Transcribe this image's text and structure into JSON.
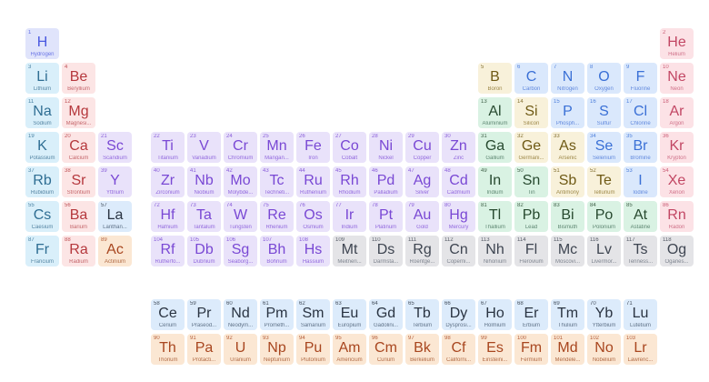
{
  "table": {
    "name": "periodic-table"
  },
  "categories": {
    "hydrogen": {
      "bg": "#e0e4fb",
      "main": "#4a59e0",
      "dim": "#6a74e6"
    },
    "alkali": {
      "bg": "#d9effa",
      "main": "#2f6e93",
      "dim": "#5585a3"
    },
    "alkaline": {
      "bg": "#fce5e5",
      "main": "#b5383d",
      "dim": "#c4656a"
    },
    "transition": {
      "bg": "#e9e2fa",
      "main": "#7948d4",
      "dim": "#9168dd"
    },
    "post_transition": {
      "bg": "#d9f2e3",
      "main": "#27492f",
      "dim": "#5d8671"
    },
    "metalloid": {
      "bg": "#f8f1da",
      "main": "#6f5a15",
      "dim": "#9c8747"
    },
    "nonmetal": {
      "bg": "#dae8fc",
      "main": "#3a70d6",
      "dim": "#6189dd"
    },
    "noble": {
      "bg": "#fce2e6",
      "main": "#c24764",
      "dim": "#cf7088"
    },
    "lanthanide": {
      "bg": "#dcebfb",
      "main": "#2a3442",
      "dim": "#5f7288"
    },
    "actinide": {
      "bg": "#fbe7d3",
      "main": "#a8461f",
      "dim": "#b06a44"
    },
    "unknown": {
      "bg": "#e4e4e7",
      "main": "#3e4551",
      "dim": "#7d838e"
    }
  },
  "elements": [
    {
      "n": 1,
      "sym": "H",
      "name": "Hydrogen",
      "cat": "hydrogen",
      "row": 1,
      "col": 1
    },
    {
      "n": 2,
      "sym": "He",
      "name": "Helium",
      "cat": "noble",
      "row": 1,
      "col": 18
    },
    {
      "n": 3,
      "sym": "Li",
      "name": "Lithium",
      "cat": "alkali",
      "row": 2,
      "col": 1
    },
    {
      "n": 4,
      "sym": "Be",
      "name": "Beryllium",
      "cat": "alkaline",
      "row": 2,
      "col": 2
    },
    {
      "n": 5,
      "sym": "B",
      "name": "Boron",
      "cat": "metalloid",
      "row": 2,
      "col": 13
    },
    {
      "n": 6,
      "sym": "C",
      "name": "Carbon",
      "cat": "nonmetal",
      "row": 2,
      "col": 14
    },
    {
      "n": 7,
      "sym": "N",
      "name": "Nitrogen",
      "cat": "nonmetal",
      "row": 2,
      "col": 15
    },
    {
      "n": 8,
      "sym": "O",
      "name": "Oxygen",
      "cat": "nonmetal",
      "row": 2,
      "col": 16
    },
    {
      "n": 9,
      "sym": "F",
      "name": "Fluorine",
      "cat": "nonmetal",
      "row": 2,
      "col": 17
    },
    {
      "n": 10,
      "sym": "Ne",
      "name": "Neon",
      "cat": "noble",
      "row": 2,
      "col": 18
    },
    {
      "n": 11,
      "sym": "Na",
      "name": "Sodium",
      "cat": "alkali",
      "row": 3,
      "col": 1
    },
    {
      "n": 12,
      "sym": "Mg",
      "name": "Magnesi...",
      "cat": "alkaline",
      "row": 3,
      "col": 2
    },
    {
      "n": 13,
      "sym": "Al",
      "name": "Aluminium",
      "cat": "post_transition",
      "row": 3,
      "col": 13
    },
    {
      "n": 14,
      "sym": "Si",
      "name": "Silicon",
      "cat": "metalloid",
      "row": 3,
      "col": 14
    },
    {
      "n": 15,
      "sym": "P",
      "name": "Phosph...",
      "cat": "nonmetal",
      "row": 3,
      "col": 15
    },
    {
      "n": 16,
      "sym": "S",
      "name": "Sulfur",
      "cat": "nonmetal",
      "row": 3,
      "col": 16
    },
    {
      "n": 17,
      "sym": "Cl",
      "name": "Chlorine",
      "cat": "nonmetal",
      "row": 3,
      "col": 17
    },
    {
      "n": 18,
      "sym": "Ar",
      "name": "Argon",
      "cat": "noble",
      "row": 3,
      "col": 18
    },
    {
      "n": 19,
      "sym": "K",
      "name": "Potassium",
      "cat": "alkali",
      "row": 4,
      "col": 1
    },
    {
      "n": 20,
      "sym": "Ca",
      "name": "Calcium",
      "cat": "alkaline",
      "row": 4,
      "col": 2
    },
    {
      "n": 21,
      "sym": "Sc",
      "name": "Scandium",
      "cat": "transition",
      "row": 4,
      "col": 3
    },
    {
      "n": 22,
      "sym": "Ti",
      "name": "Titanium",
      "cat": "transition",
      "row": 4,
      "col": 4
    },
    {
      "n": 23,
      "sym": "V",
      "name": "Vanadium",
      "cat": "transition",
      "row": 4,
      "col": 5
    },
    {
      "n": 24,
      "sym": "Cr",
      "name": "Chromium",
      "cat": "transition",
      "row": 4,
      "col": 6
    },
    {
      "n": 25,
      "sym": "Mn",
      "name": "Mangan...",
      "cat": "transition",
      "row": 4,
      "col": 7
    },
    {
      "n": 26,
      "sym": "Fe",
      "name": "Iron",
      "cat": "transition",
      "row": 4,
      "col": 8
    },
    {
      "n": 27,
      "sym": "Co",
      "name": "Cobalt",
      "cat": "transition",
      "row": 4,
      "col": 9
    },
    {
      "n": 28,
      "sym": "Ni",
      "name": "Nickel",
      "cat": "transition",
      "row": 4,
      "col": 10
    },
    {
      "n": 29,
      "sym": "Cu",
      "name": "Copper",
      "cat": "transition",
      "row": 4,
      "col": 11
    },
    {
      "n": 30,
      "sym": "Zn",
      "name": "Zinc",
      "cat": "transition",
      "row": 4,
      "col": 12
    },
    {
      "n": 31,
      "sym": "Ga",
      "name": "Gallium",
      "cat": "post_transition",
      "row": 4,
      "col": 13
    },
    {
      "n": 32,
      "sym": "Ge",
      "name": "Germani...",
      "cat": "metalloid",
      "row": 4,
      "col": 14
    },
    {
      "n": 33,
      "sym": "As",
      "name": "Arsenic",
      "cat": "metalloid",
      "row": 4,
      "col": 15
    },
    {
      "n": 34,
      "sym": "Se",
      "name": "Selenium",
      "cat": "nonmetal",
      "row": 4,
      "col": 16
    },
    {
      "n": 35,
      "sym": "Br",
      "name": "Bromine",
      "cat": "nonmetal",
      "row": 4,
      "col": 17
    },
    {
      "n": 36,
      "sym": "Kr",
      "name": "Krypton",
      "cat": "noble",
      "row": 4,
      "col": 18
    },
    {
      "n": 37,
      "sym": "Rb",
      "name": "Rubidium",
      "cat": "alkali",
      "row": 5,
      "col": 1
    },
    {
      "n": 38,
      "sym": "Sr",
      "name": "Strontium",
      "cat": "alkaline",
      "row": 5,
      "col": 2
    },
    {
      "n": 39,
      "sym": "Y",
      "name": "Yttrium",
      "cat": "transition",
      "row": 5,
      "col": 3
    },
    {
      "n": 40,
      "sym": "Zr",
      "name": "Zirconium",
      "cat": "transition",
      "row": 5,
      "col": 4
    },
    {
      "n": 41,
      "sym": "Nb",
      "name": "Niobium",
      "cat": "transition",
      "row": 5,
      "col": 5
    },
    {
      "n": 42,
      "sym": "Mo",
      "name": "Molybde...",
      "cat": "transition",
      "row": 5,
      "col": 6
    },
    {
      "n": 43,
      "sym": "Tc",
      "name": "Techneti...",
      "cat": "transition",
      "row": 5,
      "col": 7
    },
    {
      "n": 44,
      "sym": "Ru",
      "name": "Ruthenium",
      "cat": "transition",
      "row": 5,
      "col": 8
    },
    {
      "n": 45,
      "sym": "Rh",
      "name": "Rhodium",
      "cat": "transition",
      "row": 5,
      "col": 9
    },
    {
      "n": 46,
      "sym": "Pd",
      "name": "Palladium",
      "cat": "transition",
      "row": 5,
      "col": 10
    },
    {
      "n": 47,
      "sym": "Ag",
      "name": "Silver",
      "cat": "transition",
      "row": 5,
      "col": 11
    },
    {
      "n": 48,
      "sym": "Cd",
      "name": "Cadmium",
      "cat": "transition",
      "row": 5,
      "col": 12
    },
    {
      "n": 49,
      "sym": "In",
      "name": "Indium",
      "cat": "post_transition",
      "row": 5,
      "col": 13
    },
    {
      "n": 50,
      "sym": "Sn",
      "name": "Tin",
      "cat": "post_transition",
      "row": 5,
      "col": 14
    },
    {
      "n": 51,
      "sym": "Sb",
      "name": "Antimony",
      "cat": "metalloid",
      "row": 5,
      "col": 15
    },
    {
      "n": 52,
      "sym": "Te",
      "name": "Tellurium",
      "cat": "metalloid",
      "row": 5,
      "col": 16
    },
    {
      "n": 53,
      "sym": "I",
      "name": "Iodine",
      "cat": "nonmetal",
      "row": 5,
      "col": 17
    },
    {
      "n": 54,
      "sym": "Xe",
      "name": "Xenon",
      "cat": "noble",
      "row": 5,
      "col": 18
    },
    {
      "n": 55,
      "sym": "Cs",
      "name": "Caesium",
      "cat": "alkali",
      "row": 6,
      "col": 1
    },
    {
      "n": 56,
      "sym": "Ba",
      "name": "Barium",
      "cat": "alkaline",
      "row": 6,
      "col": 2
    },
    {
      "n": 57,
      "sym": "La",
      "name": "Lanthan...",
      "cat": "lanthanide",
      "row": 6,
      "col": 3
    },
    {
      "n": 72,
      "sym": "Hf",
      "name": "Hafnium",
      "cat": "transition",
      "row": 6,
      "col": 4
    },
    {
      "n": 73,
      "sym": "Ta",
      "name": "Tantalum",
      "cat": "transition",
      "row": 6,
      "col": 5
    },
    {
      "n": 74,
      "sym": "W",
      "name": "Tungsten",
      "cat": "transition",
      "row": 6,
      "col": 6
    },
    {
      "n": 75,
      "sym": "Re",
      "name": "Rhenium",
      "cat": "transition",
      "row": 6,
      "col": 7
    },
    {
      "n": 76,
      "sym": "Os",
      "name": "Osmium",
      "cat": "transition",
      "row": 6,
      "col": 8
    },
    {
      "n": 77,
      "sym": "Ir",
      "name": "Iridium",
      "cat": "transition",
      "row": 6,
      "col": 9
    },
    {
      "n": 78,
      "sym": "Pt",
      "name": "Platinum",
      "cat": "transition",
      "row": 6,
      "col": 10
    },
    {
      "n": 79,
      "sym": "Au",
      "name": "Gold",
      "cat": "transition",
      "row": 6,
      "col": 11
    },
    {
      "n": 80,
      "sym": "Hg",
      "name": "Mercury",
      "cat": "transition",
      "row": 6,
      "col": 12
    },
    {
      "n": 81,
      "sym": "Tl",
      "name": "Thallium",
      "cat": "post_transition",
      "row": 6,
      "col": 13
    },
    {
      "n": 82,
      "sym": "Pb",
      "name": "Lead",
      "cat": "post_transition",
      "row": 6,
      "col": 14
    },
    {
      "n": 83,
      "sym": "Bi",
      "name": "Bismuth",
      "cat": "post_transition",
      "row": 6,
      "col": 15
    },
    {
      "n": 84,
      "sym": "Po",
      "name": "Polonium",
      "cat": "post_transition",
      "row": 6,
      "col": 16
    },
    {
      "n": 85,
      "sym": "At",
      "name": "Astatine",
      "cat": "post_transition",
      "row": 6,
      "col": 17
    },
    {
      "n": 86,
      "sym": "Rn",
      "name": "Radon",
      "cat": "noble",
      "row": 6,
      "col": 18
    },
    {
      "n": 87,
      "sym": "Fr",
      "name": "Francium",
      "cat": "alkali",
      "row": 7,
      "col": 1
    },
    {
      "n": 88,
      "sym": "Ra",
      "name": "Radium",
      "cat": "alkaline",
      "row": 7,
      "col": 2
    },
    {
      "n": 89,
      "sym": "Ac",
      "name": "Actinium",
      "cat": "actinide",
      "row": 7,
      "col": 3
    },
    {
      "n": 104,
      "sym": "Rf",
      "name": "Rutherfo...",
      "cat": "transition",
      "row": 7,
      "col": 4
    },
    {
      "n": 105,
      "sym": "Db",
      "name": "Dubnium",
      "cat": "transition",
      "row": 7,
      "col": 5
    },
    {
      "n": 106,
      "sym": "Sg",
      "name": "Seaborg...",
      "cat": "transition",
      "row": 7,
      "col": 6
    },
    {
      "n": 107,
      "sym": "Bh",
      "name": "Bohrium",
      "cat": "transition",
      "row": 7,
      "col": 7
    },
    {
      "n": 108,
      "sym": "Hs",
      "name": "Hassium",
      "cat": "transition",
      "row": 7,
      "col": 8
    },
    {
      "n": 109,
      "sym": "Mt",
      "name": "Meitneri...",
      "cat": "unknown",
      "row": 7,
      "col": 9
    },
    {
      "n": 110,
      "sym": "Ds",
      "name": "Darmsta...",
      "cat": "unknown",
      "row": 7,
      "col": 10
    },
    {
      "n": 111,
      "sym": "Rg",
      "name": "Roentge...",
      "cat": "unknown",
      "row": 7,
      "col": 11
    },
    {
      "n": 112,
      "sym": "Cn",
      "name": "Coperni...",
      "cat": "unknown",
      "row": 7,
      "col": 12
    },
    {
      "n": 113,
      "sym": "Nh",
      "name": "Nihonium",
      "cat": "unknown",
      "row": 7,
      "col": 13
    },
    {
      "n": 114,
      "sym": "Fl",
      "name": "Flerovium",
      "cat": "unknown",
      "row": 7,
      "col": 14
    },
    {
      "n": 115,
      "sym": "Mc",
      "name": "Moscovi...",
      "cat": "unknown",
      "row": 7,
      "col": 15
    },
    {
      "n": 116,
      "sym": "Lv",
      "name": "Livermor...",
      "cat": "unknown",
      "row": 7,
      "col": 16
    },
    {
      "n": 117,
      "sym": "Ts",
      "name": "Tenness...",
      "cat": "unknown",
      "row": 7,
      "col": 17
    },
    {
      "n": 118,
      "sym": "Og",
      "name": "Oganes...",
      "cat": "unknown",
      "row": 7,
      "col": 18
    },
    {
      "n": 58,
      "sym": "Ce",
      "name": "Cerium",
      "cat": "lanthanide",
      "row": 8,
      "col": 4
    },
    {
      "n": 59,
      "sym": "Pr",
      "name": "Praseod...",
      "cat": "lanthanide",
      "row": 8,
      "col": 5
    },
    {
      "n": 60,
      "sym": "Nd",
      "name": "Neodym...",
      "cat": "lanthanide",
      "row": 8,
      "col": 6
    },
    {
      "n": 61,
      "sym": "Pm",
      "name": "Prometh...",
      "cat": "lanthanide",
      "row": 8,
      "col": 7
    },
    {
      "n": 62,
      "sym": "Sm",
      "name": "Samarium",
      "cat": "lanthanide",
      "row": 8,
      "col": 8
    },
    {
      "n": 63,
      "sym": "Eu",
      "name": "Europium",
      "cat": "lanthanide",
      "row": 8,
      "col": 9
    },
    {
      "n": 64,
      "sym": "Gd",
      "name": "Gadolini...",
      "cat": "lanthanide",
      "row": 8,
      "col": 10
    },
    {
      "n": 65,
      "sym": "Tb",
      "name": "Terbium",
      "cat": "lanthanide",
      "row": 8,
      "col": 11
    },
    {
      "n": 66,
      "sym": "Dy",
      "name": "Dysprosi...",
      "cat": "lanthanide",
      "row": 8,
      "col": 12
    },
    {
      "n": 67,
      "sym": "Ho",
      "name": "Holmium",
      "cat": "lanthanide",
      "row": 8,
      "col": 13
    },
    {
      "n": 68,
      "sym": "Er",
      "name": "Erbium",
      "cat": "lanthanide",
      "row": 8,
      "col": 14
    },
    {
      "n": 69,
      "sym": "Tm",
      "name": "Thulium",
      "cat": "lanthanide",
      "row": 8,
      "col": 15
    },
    {
      "n": 70,
      "sym": "Yb",
      "name": "Ytterbium",
      "cat": "lanthanide",
      "row": 8,
      "col": 16
    },
    {
      "n": 71,
      "sym": "Lu",
      "name": "Lutetium",
      "cat": "lanthanide",
      "row": 8,
      "col": 17
    },
    {
      "n": 90,
      "sym": "Th",
      "name": "Thorium",
      "cat": "actinide",
      "row": 9,
      "col": 4
    },
    {
      "n": 91,
      "sym": "Pa",
      "name": "Protacti...",
      "cat": "actinide",
      "row": 9,
      "col": 5
    },
    {
      "n": 92,
      "sym": "U",
      "name": "Uranium",
      "cat": "actinide",
      "row": 9,
      "col": 6
    },
    {
      "n": 93,
      "sym": "Np",
      "name": "Neptunium",
      "cat": "actinide",
      "row": 9,
      "col": 7
    },
    {
      "n": 94,
      "sym": "Pu",
      "name": "Plutonium",
      "cat": "actinide",
      "row": 9,
      "col": 8
    },
    {
      "n": 95,
      "sym": "Am",
      "name": "Americium",
      "cat": "actinide",
      "row": 9,
      "col": 9
    },
    {
      "n": 96,
      "sym": "Cm",
      "name": "Curium",
      "cat": "actinide",
      "row": 9,
      "col": 10
    },
    {
      "n": 97,
      "sym": "Bk",
      "name": "Berkelium",
      "cat": "actinide",
      "row": 9,
      "col": 11
    },
    {
      "n": 98,
      "sym": "Cf",
      "name": "Californi...",
      "cat": "actinide",
      "row": 9,
      "col": 12
    },
    {
      "n": 99,
      "sym": "Es",
      "name": "Einsteini...",
      "cat": "actinide",
      "row": 9,
      "col": 13
    },
    {
      "n": 100,
      "sym": "Fm",
      "name": "Fermium",
      "cat": "actinide",
      "row": 9,
      "col": 14
    },
    {
      "n": 101,
      "sym": "Md",
      "name": "Mendele...",
      "cat": "actinide",
      "row": 9,
      "col": 15
    },
    {
      "n": 102,
      "sym": "No",
      "name": "Nobelium",
      "cat": "actinide",
      "row": 9,
      "col": 16
    },
    {
      "n": 103,
      "sym": "Lr",
      "name": "Lawrenc...",
      "cat": "actinide",
      "row": 9,
      "col": 17
    }
  ]
}
